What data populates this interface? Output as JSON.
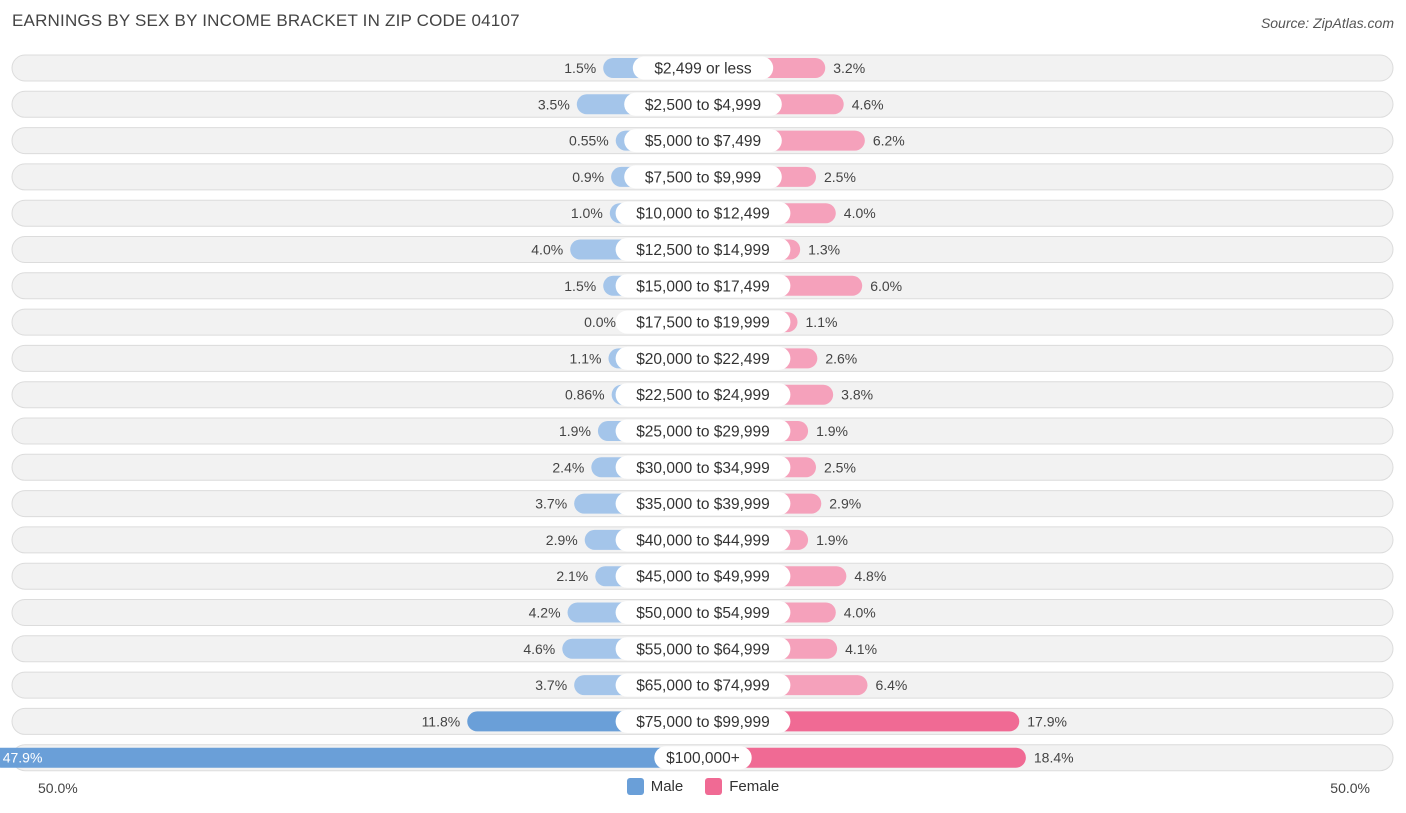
{
  "title": "EARNINGS BY SEX BY INCOME BRACKET IN ZIP CODE 04107",
  "source": "Source: ZipAtlas.com",
  "axis": {
    "left_label": "50.0%",
    "right_label": "50.0%"
  },
  "legend": [
    {
      "label": "Male",
      "color": "#6a9fd8"
    },
    {
      "label": "Female",
      "color": "#f06a94"
    }
  ],
  "colors": {
    "male_light": "#a4c5ea",
    "male_dark": "#6a9fd8",
    "female_light": "#f5a1bb",
    "female_dark": "#f06a94",
    "row_bg": "#f2f2f2",
    "row_border": "#dcdcdc"
  },
  "chart_data": {
    "type": "bar",
    "orientation": "horizontal-diverging",
    "title": "EARNINGS BY SEX BY INCOME BRACKET IN ZIP CODE 04107",
    "xlim": [
      -50,
      50
    ],
    "categories": [
      "$2,499 or less",
      "$2,500 to $4,999",
      "$5,000 to $7,499",
      "$7,500 to $9,999",
      "$10,000 to $12,499",
      "$12,500 to $14,999",
      "$15,000 to $17,499",
      "$17,500 to $19,999",
      "$20,000 to $22,499",
      "$22,500 to $24,999",
      "$25,000 to $29,999",
      "$30,000 to $34,999",
      "$35,000 to $39,999",
      "$40,000 to $44,999",
      "$45,000 to $49,999",
      "$50,000 to $54,999",
      "$55,000 to $64,999",
      "$65,000 to $74,999",
      "$75,000 to $99,999",
      "$100,000+"
    ],
    "series": [
      {
        "name": "Male",
        "values": [
          1.5,
          3.5,
          0.55,
          0.9,
          1.0,
          4.0,
          1.5,
          0.0,
          1.1,
          0.86,
          1.9,
          2.4,
          3.7,
          2.9,
          2.1,
          4.2,
          4.6,
          3.7,
          11.8,
          47.9
        ],
        "labels": [
          "1.5%",
          "3.5%",
          "0.55%",
          "0.9%",
          "1.0%",
          "4.0%",
          "1.5%",
          "0.0%",
          "1.1%",
          "0.86%",
          "1.9%",
          "2.4%",
          "3.7%",
          "2.9%",
          "2.1%",
          "4.2%",
          "4.6%",
          "3.7%",
          "11.8%",
          "47.9%"
        ]
      },
      {
        "name": "Female",
        "values": [
          3.2,
          4.6,
          6.2,
          2.5,
          4.0,
          1.3,
          6.0,
          1.1,
          2.6,
          3.8,
          1.9,
          2.5,
          2.9,
          1.9,
          4.8,
          4.0,
          4.1,
          6.4,
          17.9,
          18.4
        ],
        "labels": [
          "3.2%",
          "4.6%",
          "6.2%",
          "2.5%",
          "4.0%",
          "1.3%",
          "6.0%",
          "1.1%",
          "2.6%",
          "3.8%",
          "1.9%",
          "2.5%",
          "2.9%",
          "1.9%",
          "4.8%",
          "4.0%",
          "4.1%",
          "6.4%",
          "17.9%",
          "18.4%"
        ]
      }
    ]
  }
}
